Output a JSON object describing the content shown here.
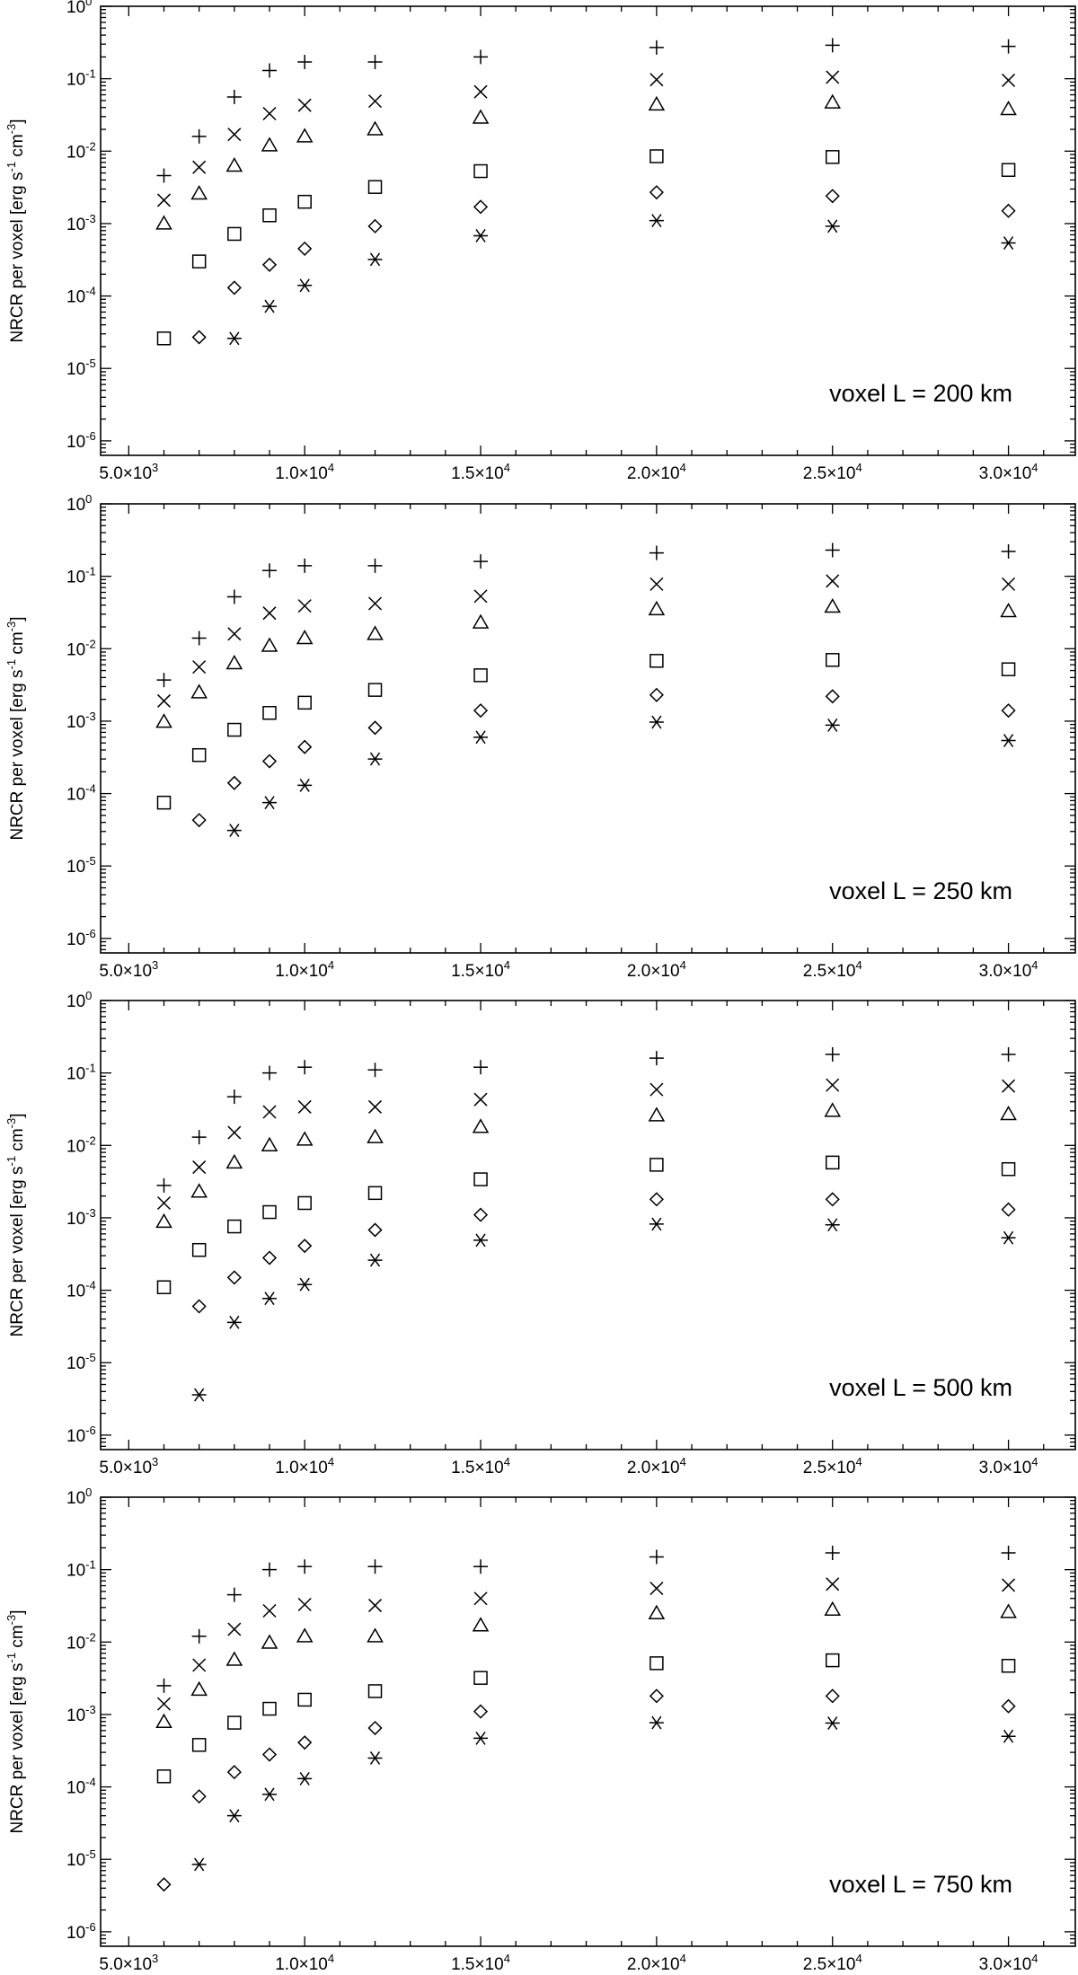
{
  "chart_data": [
    {
      "type": "scatter",
      "annotation": "voxel L = 200 km",
      "ylabel": "NRCR per voxel [erg s-1 cm-3]",
      "xlabel": "",
      "xlim": [
        4200,
        31900
      ],
      "ylim_log10": [
        -6.2,
        0
      ],
      "yscale": "log",
      "x_tick_labels": [
        "5.0×10³",
        "1.0×10⁴",
        "1.5×10⁴",
        "2.0×10⁴",
        "2.5×10⁴",
        "3.0×10⁴"
      ],
      "y_tick_exponents": [
        0,
        -1,
        -2,
        -3,
        -4,
        -5,
        -6
      ],
      "series": [
        {
          "marker": "plus",
          "x": [
            6000,
            7000,
            8000,
            9000,
            10000,
            12000,
            15000,
            20000,
            25000,
            30000
          ],
          "y": [
            0.0046,
            0.016,
            0.056,
            0.13,
            0.17,
            0.17,
            0.2,
            0.27,
            0.29,
            0.28
          ]
        },
        {
          "marker": "cross",
          "x": [
            6000,
            7000,
            8000,
            9000,
            10000,
            12000,
            15000,
            20000,
            25000,
            30000
          ],
          "y": [
            0.0021,
            0.006,
            0.017,
            0.033,
            0.043,
            0.049,
            0.066,
            0.097,
            0.105,
            0.095
          ]
        },
        {
          "marker": "triangle",
          "x": [
            6000,
            7000,
            8000,
            9000,
            10000,
            12000,
            15000,
            20000,
            25000,
            30000
          ],
          "y": [
            0.001,
            0.0026,
            0.0063,
            0.012,
            0.016,
            0.02,
            0.029,
            0.044,
            0.047,
            0.038
          ]
        },
        {
          "marker": "square",
          "x": [
            6000,
            7000,
            8000,
            9000,
            10000,
            12000,
            15000,
            20000,
            25000,
            30000
          ],
          "y": [
            2.6e-05,
            0.0003,
            0.00072,
            0.0013,
            0.002,
            0.0032,
            0.0053,
            0.0085,
            0.0083,
            0.0055
          ]
        },
        {
          "marker": "diamond",
          "x": [
            7000,
            8000,
            9000,
            10000,
            12000,
            15000,
            20000,
            25000,
            30000
          ],
          "y": [
            2.7e-05,
            0.00013,
            0.00027,
            0.00045,
            0.00092,
            0.0017,
            0.0027,
            0.0024,
            0.0015
          ]
        },
        {
          "marker": "asterisk",
          "x": [
            8000,
            9000,
            10000,
            12000,
            15000,
            20000,
            25000,
            30000
          ],
          "y": [
            2.6e-05,
            7.2e-05,
            0.00014,
            0.00032,
            0.00068,
            0.0011,
            0.00092,
            0.00054
          ]
        }
      ]
    },
    {
      "type": "scatter",
      "annotation": "voxel L = 250 km",
      "ylabel": "NRCR per voxel [erg s-1 cm-3]",
      "xlabel": "",
      "xlim": [
        4200,
        31900
      ],
      "ylim_log10": [
        -6.2,
        0
      ],
      "yscale": "log",
      "x_tick_labels": [
        "5.0×10³",
        "1.0×10⁴",
        "1.5×10⁴",
        "2.0×10⁴",
        "2.5×10⁴",
        "3.0×10⁴"
      ],
      "y_tick_exponents": [
        0,
        -1,
        -2,
        -3,
        -4,
        -5,
        -6
      ],
      "series": [
        {
          "marker": "plus",
          "x": [
            6000,
            7000,
            8000,
            9000,
            10000,
            12000,
            15000,
            20000,
            25000,
            30000
          ],
          "y": [
            0.0037,
            0.014,
            0.052,
            0.12,
            0.14,
            0.14,
            0.16,
            0.21,
            0.23,
            0.22
          ]
        },
        {
          "marker": "cross",
          "x": [
            6000,
            7000,
            8000,
            9000,
            10000,
            12000,
            15000,
            20000,
            25000,
            30000
          ],
          "y": [
            0.0019,
            0.0056,
            0.016,
            0.031,
            0.039,
            0.042,
            0.053,
            0.078,
            0.086,
            0.078
          ]
        },
        {
          "marker": "triangle",
          "x": [
            6000,
            7000,
            8000,
            9000,
            10000,
            12000,
            15000,
            20000,
            25000,
            30000
          ],
          "y": [
            0.00098,
            0.0025,
            0.0063,
            0.011,
            0.014,
            0.016,
            0.023,
            0.035,
            0.038,
            0.033
          ]
        },
        {
          "marker": "square",
          "x": [
            6000,
            7000,
            8000,
            9000,
            10000,
            12000,
            15000,
            20000,
            25000,
            30000
          ],
          "y": [
            7.5e-05,
            0.00034,
            0.00076,
            0.0013,
            0.0018,
            0.0027,
            0.0043,
            0.0068,
            0.007,
            0.0052
          ]
        },
        {
          "marker": "diamond",
          "x": [
            7000,
            8000,
            9000,
            10000,
            12000,
            15000,
            20000,
            25000,
            30000
          ],
          "y": [
            4.3e-05,
            0.00014,
            0.00028,
            0.00044,
            0.00081,
            0.0014,
            0.0023,
            0.0022,
            0.0014
          ]
        },
        {
          "marker": "asterisk",
          "x": [
            8000,
            9000,
            10000,
            12000,
            15000,
            20000,
            25000,
            30000
          ],
          "y": [
            3.1e-05,
            7.5e-05,
            0.00013,
            0.0003,
            0.0006,
            0.00097,
            0.00088,
            0.00054
          ]
        }
      ]
    },
    {
      "type": "scatter",
      "annotation": "voxel L = 500 km",
      "ylabel": "NRCR per voxel [erg s-1 cm-3]",
      "xlabel": "",
      "xlim": [
        4200,
        31900
      ],
      "ylim_log10": [
        -6.2,
        0
      ],
      "yscale": "log",
      "x_tick_labels": [
        "5.0×10³",
        "1.0×10⁴",
        "1.5×10⁴",
        "2.0×10⁴",
        "2.5×10⁴",
        "3.0×10⁴"
      ],
      "y_tick_exponents": [
        0,
        -1,
        -2,
        -3,
        -4,
        -5,
        -6
      ],
      "series": [
        {
          "marker": "plus",
          "x": [
            6000,
            7000,
            8000,
            9000,
            10000,
            12000,
            15000,
            20000,
            25000,
            30000
          ],
          "y": [
            0.0028,
            0.013,
            0.047,
            0.1,
            0.12,
            0.11,
            0.12,
            0.16,
            0.18,
            0.18
          ]
        },
        {
          "marker": "cross",
          "x": [
            6000,
            7000,
            8000,
            9000,
            10000,
            12000,
            15000,
            20000,
            25000,
            30000
          ],
          "y": [
            0.0016,
            0.005,
            0.015,
            0.029,
            0.034,
            0.034,
            0.043,
            0.059,
            0.068,
            0.066
          ]
        },
        {
          "marker": "triangle",
          "x": [
            6000,
            7000,
            8000,
            9000,
            10000,
            12000,
            15000,
            20000,
            25000,
            30000
          ],
          "y": [
            0.00088,
            0.0023,
            0.0058,
            0.01,
            0.012,
            0.013,
            0.018,
            0.026,
            0.03,
            0.027
          ]
        },
        {
          "marker": "square",
          "x": [
            6000,
            7000,
            8000,
            9000,
            10000,
            12000,
            15000,
            20000,
            25000,
            30000
          ],
          "y": [
            0.00011,
            0.00036,
            0.00076,
            0.0012,
            0.0016,
            0.0022,
            0.0034,
            0.0054,
            0.0058,
            0.0047
          ]
        },
        {
          "marker": "diamond",
          "x": [
            7000,
            8000,
            9000,
            10000,
            12000,
            15000,
            20000,
            25000,
            30000
          ],
          "y": [
            6e-05,
            0.00015,
            0.00028,
            0.00041,
            0.00068,
            0.0011,
            0.0018,
            0.0018,
            0.0013
          ]
        },
        {
          "marker": "asterisk",
          "x": [
            7000,
            8000,
            9000,
            10000,
            12000,
            15000,
            20000,
            25000,
            30000
          ],
          "y": [
            3.6e-06,
            3.6e-05,
            7.7e-05,
            0.00012,
            0.00026,
            0.00049,
            0.00082,
            0.0008,
            0.00053
          ]
        }
      ]
    },
    {
      "type": "scatter",
      "annotation": "voxel L = 750 km",
      "ylabel": "NRCR per voxel [erg s-1 cm-3]",
      "xlabel": "",
      "xlim": [
        4200,
        31900
      ],
      "ylim_log10": [
        -6.2,
        0
      ],
      "yscale": "log",
      "x_tick_labels": [
        "5.0×10³",
        "1.0×10⁴",
        "1.5×10⁴",
        "2.0×10⁴",
        "2.5×10⁴",
        "3.0×10⁴"
      ],
      "y_tick_exponents": [
        0,
        -1,
        -2,
        -3,
        -4,
        -5,
        -6
      ],
      "series": [
        {
          "marker": "plus",
          "x": [
            6000,
            7000,
            8000,
            9000,
            10000,
            12000,
            15000,
            20000,
            25000,
            30000
          ],
          "y": [
            0.0025,
            0.012,
            0.045,
            0.1,
            0.11,
            0.11,
            0.11,
            0.15,
            0.17,
            0.17
          ]
        },
        {
          "marker": "cross",
          "x": [
            6000,
            7000,
            8000,
            9000,
            10000,
            12000,
            15000,
            20000,
            25000,
            30000
          ],
          "y": [
            0.0014,
            0.0048,
            0.015,
            0.027,
            0.033,
            0.032,
            0.04,
            0.055,
            0.063,
            0.061
          ]
        },
        {
          "marker": "triangle",
          "x": [
            6000,
            7000,
            8000,
            9000,
            10000,
            12000,
            15000,
            20000,
            25000,
            30000
          ],
          "y": [
            0.00079,
            0.0022,
            0.0057,
            0.0098,
            0.012,
            0.012,
            0.017,
            0.025,
            0.028,
            0.026
          ]
        },
        {
          "marker": "square",
          "x": [
            6000,
            7000,
            8000,
            9000,
            10000,
            12000,
            15000,
            20000,
            25000,
            30000
          ],
          "y": [
            0.00014,
            0.00038,
            0.00077,
            0.0012,
            0.0016,
            0.0021,
            0.0032,
            0.0051,
            0.0056,
            0.0047
          ]
        },
        {
          "marker": "diamond",
          "x": [
            6000,
            7000,
            8000,
            9000,
            10000,
            12000,
            15000,
            20000,
            25000,
            30000
          ],
          "y": [
            4.5e-06,
            7.4e-05,
            0.00016,
            0.00028,
            0.00041,
            0.00065,
            0.0011,
            0.0018,
            0.0018,
            0.0013
          ]
        },
        {
          "marker": "asterisk",
          "x": [
            7000,
            8000,
            9000,
            10000,
            12000,
            15000,
            20000,
            25000,
            30000
          ],
          "y": [
            8.5e-06,
            4e-05,
            7.9e-05,
            0.00013,
            0.00025,
            0.00047,
            0.00077,
            0.00076,
            0.0005
          ]
        }
      ]
    }
  ]
}
